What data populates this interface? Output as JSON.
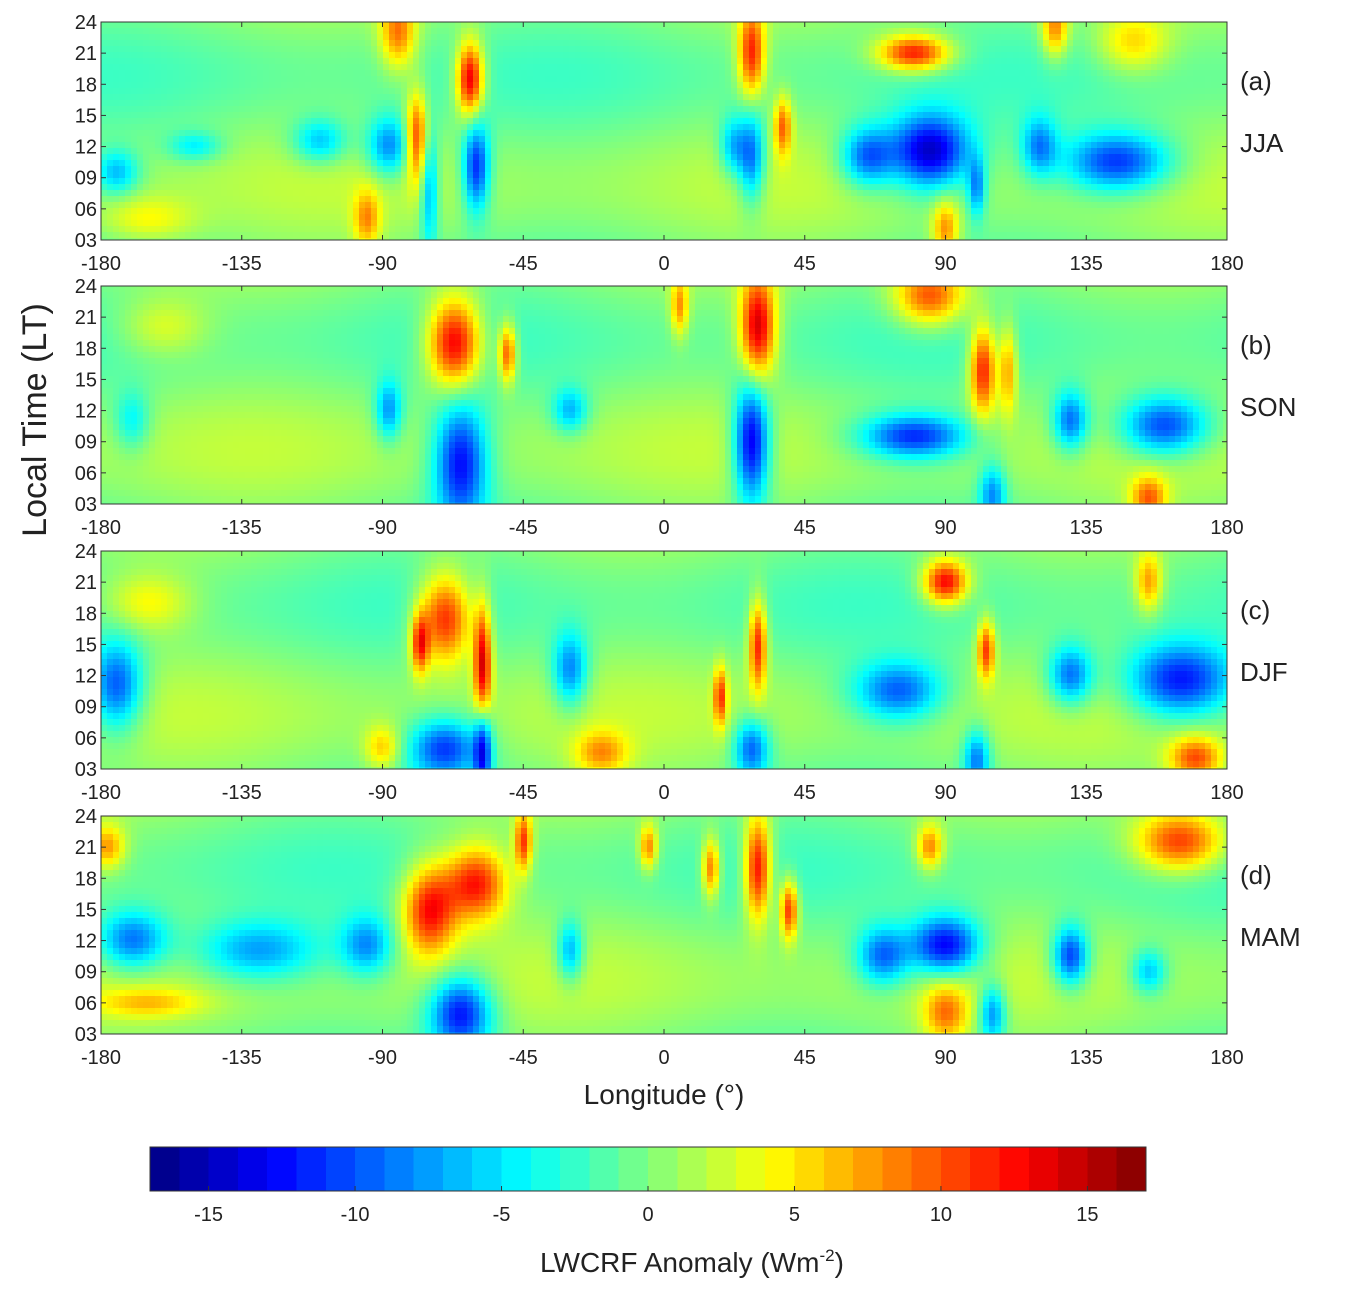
{
  "figure": {
    "ylabel": "Local Time (LT)",
    "xlabel": "Longitude (°)",
    "colorbar_label_main": "LWCRF Anomaly (Wm",
    "colorbar_label_sup": "-2",
    "colorbar_label_end": ")"
  },
  "colors": {
    "colormap": [
      "#00007f",
      "#0000ff",
      "#007fff",
      "#00ffff",
      "#7fff7f",
      "#ffff00",
      "#ff7f00",
      "#ff0000",
      "#7f0000"
    ]
  },
  "chart_data": {
    "type": "heatmap",
    "x_range": [
      -180,
      180
    ],
    "y_range": [
      3,
      24
    ],
    "color_range": [
      -17,
      17
    ],
    "x_ticks": [
      -180,
      -135,
      -90,
      -45,
      0,
      45,
      90,
      135,
      180
    ],
    "x_tick_labels": [
      "-180",
      "-135",
      "-90",
      "-45",
      "0",
      "45",
      "90",
      "135",
      "180"
    ],
    "y_ticks": [
      3,
      6,
      9,
      12,
      15,
      18,
      21,
      24
    ],
    "y_tick_labels": [
      "03",
      "06",
      "09",
      "12",
      "15",
      "18",
      "21",
      "24"
    ],
    "colorbar_ticks": [
      -15,
      -10,
      -5,
      0,
      5,
      10,
      15
    ],
    "colorbar_tick_labels": [
      "-15",
      "-10",
      "-5",
      "0",
      "5",
      "10",
      "15"
    ],
    "panels": [
      {
        "tag": "(a)",
        "season": "JJA",
        "blobs": [
          {
            "lon": -85,
            "lt": 23,
            "value": 9,
            "dlon": 4,
            "dlt": 2.5
          },
          {
            "lon": -79,
            "lt": 13,
            "value": 11,
            "dlon": 2.5,
            "dlt": 3
          },
          {
            "lon": -62,
            "lt": 18.5,
            "value": 15,
            "dlon": 3,
            "dlt": 2.5
          },
          {
            "lon": -60,
            "lt": 10,
            "value": -12,
            "dlon": 3,
            "dlt": 3
          },
          {
            "lon": -75,
            "lt": 8,
            "value": -8,
            "dlon": 2,
            "dlt": 4
          },
          {
            "lon": -88,
            "lt": 12,
            "value": -9,
            "dlon": 5,
            "dlt": 2
          },
          {
            "lon": -110,
            "lt": 12.5,
            "value": -7,
            "dlon": 6,
            "dlt": 1.5
          },
          {
            "lon": -150,
            "lt": 12,
            "value": -5,
            "dlon": 6,
            "dlt": 1
          },
          {
            "lon": -175,
            "lt": 9.5,
            "value": -7,
            "dlon": 5,
            "dlt": 1.5
          },
          {
            "lon": 28,
            "lt": 21,
            "value": 12,
            "dlon": 3,
            "dlt": 3
          },
          {
            "lon": 38,
            "lt": 14,
            "value": 9,
            "dlon": 2,
            "dlt": 2
          },
          {
            "lon": 28,
            "lt": 11,
            "value": -10,
            "dlon": 3,
            "dlt": 3
          },
          {
            "lon": 22,
            "lt": 12,
            "value": -7,
            "dlon": 3,
            "dlt": 2
          },
          {
            "lon": 85,
            "lt": 11.5,
            "value": -15,
            "dlon": 9,
            "dlt": 2.5
          },
          {
            "lon": 65,
            "lt": 11,
            "value": -10,
            "dlon": 6,
            "dlt": 2
          },
          {
            "lon": 80,
            "lt": 21,
            "value": 13,
            "dlon": 8,
            "dlt": 1.2
          },
          {
            "lon": 90,
            "lt": 4,
            "value": 8,
            "dlon": 3,
            "dlt": 2
          },
          {
            "lon": 145,
            "lt": 10.5,
            "value": -12,
            "dlon": 12,
            "dlt": 2
          },
          {
            "lon": 120,
            "lt": 12,
            "value": -8,
            "dlon": 4,
            "dlt": 2
          },
          {
            "lon": 125,
            "lt": 23.5,
            "value": 9,
            "dlon": 3,
            "dlt": 2
          },
          {
            "lon": 150,
            "lt": 22,
            "value": 6,
            "dlon": 8,
            "dlt": 2
          },
          {
            "lon": 100,
            "lt": 8,
            "value": -8,
            "dlon": 2,
            "dlt": 2
          },
          {
            "lon": -95,
            "lt": 5,
            "value": 7,
            "dlon": 3,
            "dlt": 2
          },
          {
            "lon": -165,
            "lt": 5,
            "value": 4,
            "dlon": 10,
            "dlt": 1.5
          }
        ]
      },
      {
        "tag": "(b)",
        "season": "SON",
        "blobs": [
          {
            "lon": -67,
            "lt": 18.5,
            "value": 15,
            "dlon": 6,
            "dlt": 3
          },
          {
            "lon": -50,
            "lt": 17.5,
            "value": 11,
            "dlon": 2,
            "dlt": 2
          },
          {
            "lon": -65,
            "lt": 7,
            "value": -13,
            "dlon": 6,
            "dlt": 4
          },
          {
            "lon": -88,
            "lt": 12,
            "value": -8,
            "dlon": 3,
            "dlt": 2
          },
          {
            "lon": 30,
            "lt": 20,
            "value": 15,
            "dlon": 4,
            "dlt": 3.5
          },
          {
            "lon": 28,
            "lt": 9,
            "value": -15,
            "dlon": 4,
            "dlt": 4
          },
          {
            "lon": 80,
            "lt": 9.5,
            "value": -12,
            "dlon": 12,
            "dlt": 1.5
          },
          {
            "lon": 85,
            "lt": 23,
            "value": 11,
            "dlon": 8,
            "dlt": 2
          },
          {
            "lon": 102,
            "lt": 16,
            "value": 13,
            "dlon": 3,
            "dlt": 3
          },
          {
            "lon": 110,
            "lt": 16,
            "value": 8,
            "dlon": 2,
            "dlt": 3
          },
          {
            "lon": 160,
            "lt": 10.5,
            "value": -12,
            "dlon": 10,
            "dlt": 2
          },
          {
            "lon": 130,
            "lt": 11,
            "value": -10,
            "dlon": 4,
            "dlt": 2
          },
          {
            "lon": 155,
            "lt": 3.5,
            "value": 9,
            "dlon": 4,
            "dlt": 1.5
          },
          {
            "lon": -30,
            "lt": 12,
            "value": -7,
            "dlon": 4,
            "dlt": 1.5
          },
          {
            "lon": -170,
            "lt": 11,
            "value": -5,
            "dlon": 4,
            "dlt": 2
          },
          {
            "lon": 5,
            "lt": 22,
            "value": 8,
            "dlon": 2,
            "dlt": 2
          },
          {
            "lon": 105,
            "lt": 4,
            "value": -8,
            "dlon": 3,
            "dlt": 2
          },
          {
            "lon": -160,
            "lt": 20,
            "value": 4,
            "dlon": 10,
            "dlt": 2
          }
        ]
      },
      {
        "tag": "(c)",
        "season": "DJF",
        "blobs": [
          {
            "lon": -70,
            "lt": 17.5,
            "value": 13,
            "dlon": 6,
            "dlt": 3
          },
          {
            "lon": -58,
            "lt": 13,
            "value": 14,
            "dlon": 2,
            "dlt": 4
          },
          {
            "lon": -78,
            "lt": 15,
            "value": 11,
            "dlon": 2,
            "dlt": 2
          },
          {
            "lon": -70,
            "lt": 5,
            "value": -11,
            "dlon": 8,
            "dlt": 2
          },
          {
            "lon": -58,
            "lt": 5,
            "value": -12,
            "dlon": 2,
            "dlt": 3
          },
          {
            "lon": -175,
            "lt": 11,
            "value": -11,
            "dlon": 6,
            "dlt": 3
          },
          {
            "lon": -30,
            "lt": 12.5,
            "value": -9,
            "dlon": 4,
            "dlt": 2.5
          },
          {
            "lon": 30,
            "lt": 15,
            "value": 12,
            "dlon": 2,
            "dlt": 3
          },
          {
            "lon": 18,
            "lt": 10,
            "value": 10,
            "dlon": 1.5,
            "dlt": 2
          },
          {
            "lon": 28,
            "lt": 5,
            "value": -10,
            "dlon": 4,
            "dlt": 2
          },
          {
            "lon": 90,
            "lt": 21,
            "value": 14,
            "dlon": 5,
            "dlt": 1.5
          },
          {
            "lon": 103,
            "lt": 14.5,
            "value": 11,
            "dlon": 2,
            "dlt": 2
          },
          {
            "lon": 75,
            "lt": 10.5,
            "value": -10,
            "dlon": 10,
            "dlt": 2
          },
          {
            "lon": 165,
            "lt": 11.5,
            "value": -13,
            "dlon": 12,
            "dlt": 2.5
          },
          {
            "lon": 130,
            "lt": 12,
            "value": -10,
            "dlon": 5,
            "dlt": 2
          },
          {
            "lon": 170,
            "lt": 4,
            "value": 10,
            "dlon": 6,
            "dlt": 1.5
          },
          {
            "lon": -20,
            "lt": 4.5,
            "value": 7,
            "dlon": 6,
            "dlt": 1.5
          },
          {
            "lon": 155,
            "lt": 21,
            "value": 8,
            "dlon": 3,
            "dlt": 2
          },
          {
            "lon": -90,
            "lt": 5,
            "value": 6,
            "dlon": 4,
            "dlt": 1.5
          },
          {
            "lon": -165,
            "lt": 19,
            "value": 5,
            "dlon": 10,
            "dlt": 2
          },
          {
            "lon": 100,
            "lt": 4,
            "value": -9,
            "dlon": 3,
            "dlt": 2
          }
        ]
      },
      {
        "tag": "(d)",
        "season": "MAM",
        "blobs": [
          {
            "lon": -75,
            "lt": 15,
            "value": 13,
            "dlon": 6,
            "dlt": 3
          },
          {
            "lon": -60,
            "lt": 17.5,
            "value": 13,
            "dlon": 7,
            "dlt": 2.5
          },
          {
            "lon": -45,
            "lt": 21.5,
            "value": 11,
            "dlon": 2,
            "dlt": 2
          },
          {
            "lon": -65,
            "lt": 5,
            "value": -13,
            "dlon": 7,
            "dlt": 2.5
          },
          {
            "lon": -170,
            "lt": 12,
            "value": -10,
            "dlon": 8,
            "dlt": 2
          },
          {
            "lon": -130,
            "lt": 11,
            "value": -8,
            "dlon": 14,
            "dlt": 2
          },
          {
            "lon": -95,
            "lt": 11.5,
            "value": -8,
            "dlon": 6,
            "dlt": 2
          },
          {
            "lon": 30,
            "lt": 19,
            "value": 14,
            "dlon": 3,
            "dlt": 3.5
          },
          {
            "lon": 40,
            "lt": 15,
            "value": 12,
            "dlon": 2,
            "dlt": 2
          },
          {
            "lon": 15,
            "lt": 19,
            "value": 10,
            "dlon": 2,
            "dlt": 2
          },
          {
            "lon": 90,
            "lt": 11.5,
            "value": -14,
            "dlon": 8,
            "dlt": 2
          },
          {
            "lon": 70,
            "lt": 10.5,
            "value": -10,
            "dlon": 6,
            "dlt": 2
          },
          {
            "lon": 130,
            "lt": 10.5,
            "value": -12,
            "dlon": 4,
            "dlt": 2
          },
          {
            "lon": 165,
            "lt": 21.5,
            "value": 12,
            "dlon": 10,
            "dlt": 2
          },
          {
            "lon": 85,
            "lt": 21,
            "value": 9,
            "dlon": 3,
            "dlt": 1.5
          },
          {
            "lon": 90,
            "lt": 5,
            "value": 8,
            "dlon": 5,
            "dlt": 2
          },
          {
            "lon": -178,
            "lt": 21,
            "value": 8,
            "dlon": 4,
            "dlt": 1.5
          },
          {
            "lon": -5,
            "lt": 21,
            "value": 9,
            "dlon": 2,
            "dlt": 1.5
          },
          {
            "lon": -30,
            "lt": 11,
            "value": -8,
            "dlon": 3,
            "dlt": 2
          },
          {
            "lon": 105,
            "lt": 5,
            "value": -9,
            "dlon": 3,
            "dlt": 2
          },
          {
            "lon": -165,
            "lt": 6,
            "value": 5,
            "dlon": 12,
            "dlt": 1
          },
          {
            "lon": 155,
            "lt": 9,
            "value": -7,
            "dlon": 4,
            "dlt": 1.5
          }
        ]
      }
    ]
  }
}
